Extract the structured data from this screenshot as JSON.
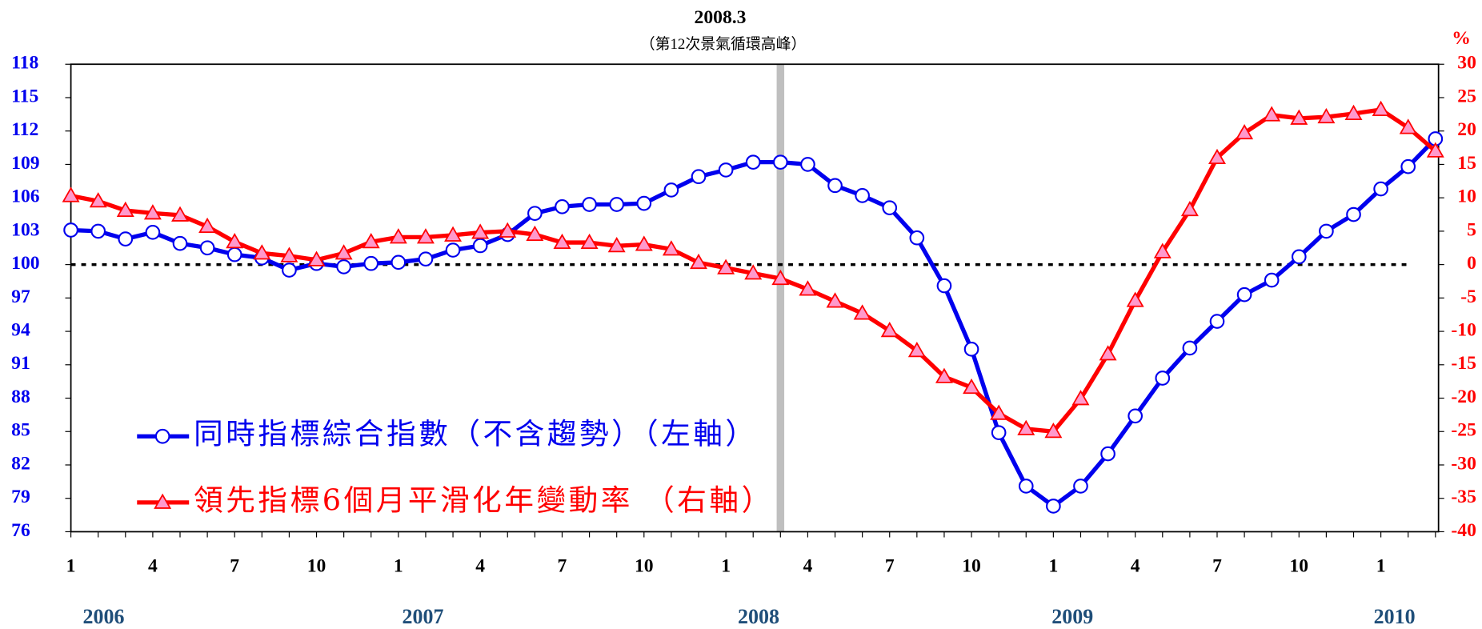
{
  "chart_data": {
    "type": "line",
    "annotation": {
      "title": "2008.3",
      "subtitle": "（第12次景氣循環高峰）"
    },
    "y2_label": "%",
    "categories": [
      "1",
      null,
      null,
      "4",
      null,
      null,
      "7",
      null,
      null,
      "10",
      null,
      null,
      "1",
      null,
      null,
      "4",
      null,
      null,
      "7",
      null,
      null,
      "10",
      null,
      null,
      "1",
      null,
      null,
      "4",
      null,
      null,
      "7",
      null,
      null,
      "10",
      null,
      null,
      "1",
      null,
      null,
      "4",
      null,
      null,
      "7",
      null,
      null,
      "10",
      null,
      null,
      "1",
      null,
      null
    ],
    "year_labels": [
      "2006",
      "2007",
      "2008",
      "2009",
      "2010"
    ],
    "ylim": [
      76,
      118
    ],
    "yticks": [
      76,
      79,
      82,
      85,
      88,
      91,
      94,
      97,
      100,
      103,
      106,
      109,
      112,
      115,
      118
    ],
    "y2lim": [
      -40,
      30
    ],
    "y2ticks": [
      -40,
      -35,
      -30,
      -25,
      -20,
      -15,
      -10,
      -5,
      0,
      5,
      10,
      15,
      20,
      25,
      30
    ],
    "y2_reference": 0,
    "series": [
      {
        "name": "同時指標綜合指數（不含趨勢）（左軸）",
        "color": "#0000ee",
        "marker": "circle",
        "axis": "y",
        "values": [
          103.1,
          103.0,
          102.3,
          102.9,
          101.9,
          101.5,
          100.9,
          100.6,
          99.5,
          100.1,
          99.8,
          100.1,
          100.2,
          100.5,
          101.3,
          101.7,
          102.7,
          104.6,
          105.2,
          105.4,
          105.4,
          105.5,
          106.7,
          107.9,
          108.5,
          109.2,
          109.2,
          109.0,
          107.1,
          106.2,
          105.1,
          102.4,
          98.1,
          92.4,
          84.9,
          80.1,
          78.3,
          80.1,
          83.0,
          86.4,
          89.8,
          92.5,
          94.9,
          97.3,
          98.6,
          100.7,
          103.0,
          104.5,
          106.8,
          108.8,
          111.3
        ]
      },
      {
        "name": "領先指標6個月平滑化年變動率 （右軸）",
        "color": "#ff0000",
        "marker": "triangle",
        "axis": "y2",
        "values": [
          10.3,
          9.5,
          8.1,
          7.7,
          7.4,
          5.7,
          3.4,
          1.7,
          1.3,
          0.7,
          1.7,
          3.4,
          4.1,
          4.1,
          4.4,
          4.8,
          5.0,
          4.5,
          3.3,
          3.3,
          2.8,
          3.0,
          2.3,
          0.3,
          -0.5,
          -1.3,
          -2.1,
          -3.7,
          -5.5,
          -7.3,
          -9.9,
          -12.9,
          -16.8,
          -18.4,
          -22.3,
          -24.6,
          -25.0,
          -20.1,
          -13.4,
          -5.4,
          1.9,
          8.2,
          16.0,
          19.7,
          22.4,
          21.9,
          22.1,
          22.6,
          23.2,
          20.5,
          17.0
        ]
      }
    ]
  }
}
